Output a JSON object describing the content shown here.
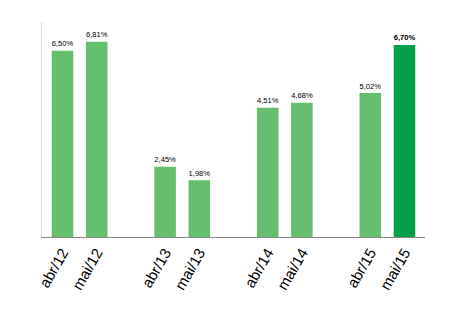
{
  "chart_data": {
    "type": "bar",
    "categories": [
      "abr/12",
      "mai/12",
      null,
      "abr/13",
      "mai/13",
      null,
      "abr/14",
      "mai/14",
      null,
      "abr/15",
      "mai/15"
    ],
    "values": [
      6.5,
      6.81,
      null,
      2.45,
      1.98,
      null,
      4.51,
      4.68,
      null,
      5.02,
      6.7
    ],
    "value_labels": [
      "6,50%",
      "6,81%",
      null,
      "2,45%",
      "1,98%",
      null,
      "4,51%",
      "4,68%",
      null,
      "5,02%",
      "6,70%"
    ],
    "colors": [
      "#66bf6e",
      "#66bf6e",
      null,
      "#66bf6e",
      "#66bf6e",
      null,
      "#66bf6e",
      "#66bf6e",
      null,
      "#66bf6e",
      "#00a04b"
    ],
    "ylim": [
      0,
      7.5
    ],
    "data_labels": true,
    "tick_labels": "x",
    "grid": false
  }
}
